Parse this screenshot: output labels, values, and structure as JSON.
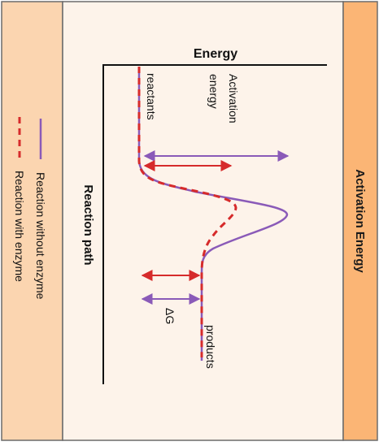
{
  "side_panel_title": "Activation Energy",
  "diagram": {
    "y_axis_label": "Energy",
    "x_axis_label": "Reaction path",
    "labels": {
      "reactants": "reactants",
      "products": "products",
      "activation_energy_line1": "Activation",
      "activation_energy_line2": "energy",
      "delta_g": "ΔG"
    }
  },
  "legend": {
    "items": [
      {
        "label": "Reaction without enzyme",
        "color": "#8a5ab8",
        "style": "solid"
      },
      {
        "label": "Reaction with enzyme",
        "color": "#d62b2b",
        "style": "dashed"
      }
    ]
  },
  "colors": {
    "left_panel": "#fbd5b0",
    "center_panel": "#fdf3ea",
    "right_panel": "#fbb575",
    "border": "#6b6b6b",
    "purple": "#8a5ab8",
    "red": "#d62b2b"
  }
}
